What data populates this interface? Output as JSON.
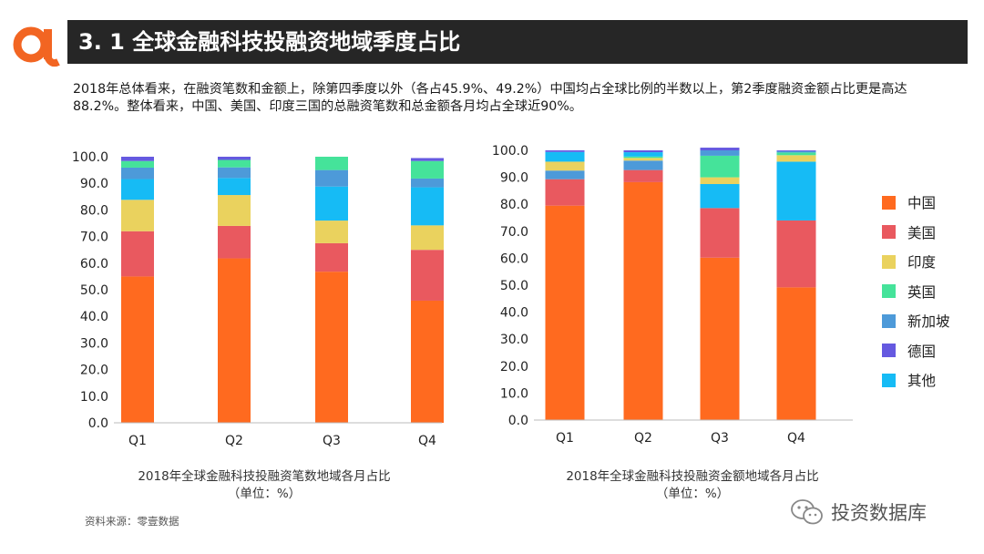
{
  "header": {
    "title": "3. 1  全球金融科技投融资地域季度占比"
  },
  "description": "2018年总体看来，在融资笔数和金额上，除第四季度以外（各占45.9%、49.2%）中国均占全球比例的半数以上，第2季度融资金额占比更是高达88.2%。整体看来，中国、美国、印度三国的总融资笔数和总金额各月均占全球近90%。",
  "colors": {
    "brand": "#f26522",
    "title_bg": "#262626",
    "series": {
      "中国": "#ff6a1f",
      "美国": "#e9595f",
      "印度": "#ead25e",
      "英国": "#45e39a",
      "新加坡": "#4d9ad9",
      "德国": "#6559e0",
      "其他": "#16bbf5"
    }
  },
  "legend": {
    "items": [
      {
        "label": "中国",
        "color_key": "中国"
      },
      {
        "label": "美国",
        "color_key": "美国"
      },
      {
        "label": "印度",
        "color_key": "印度"
      },
      {
        "label": "英国",
        "color_key": "英国"
      },
      {
        "label": "新加坡",
        "color_key": "新加坡"
      },
      {
        "label": "德国",
        "color_key": "德国"
      },
      {
        "label": "其他",
        "color_key": "其他"
      }
    ]
  },
  "chart_data": [
    {
      "type": "bar",
      "stacked": true,
      "title": "2018年全球金融科技投融资笔数地域各月占比",
      "subtitle": "（单位：%）",
      "categories": [
        "Q1",
        "Q2",
        "Q3",
        "Q4"
      ],
      "ylim": [
        0,
        100
      ],
      "yticks": [
        "0.0",
        "10.0",
        "20.0",
        "30.0",
        "40.0",
        "50.0",
        "60.0",
        "70.0",
        "80.0",
        "90.0",
        "100.0"
      ],
      "series": [
        {
          "name": "中国",
          "values": [
            55.0,
            61.8,
            56.8,
            45.9
          ]
        },
        {
          "name": "美国",
          "values": [
            17.0,
            12.2,
            10.7,
            19.1
          ]
        },
        {
          "name": "印度",
          "values": [
            11.8,
            11.6,
            8.5,
            9.2
          ]
        },
        {
          "name": "英国",
          "values": [
            0.0,
            0.0,
            0.0,
            0.0
          ]
        },
        {
          "name": "其他",
          "values": [
            7.8,
            6.4,
            12.8,
            14.3
          ]
        },
        {
          "name": "新加坡",
          "values": [
            4.3,
            4.0,
            6.2,
            3.3
          ]
        },
        {
          "name": "英国",
          "values": [
            2.5,
            2.8,
            5.0,
            6.6
          ]
        },
        {
          "name": "德国",
          "values": [
            1.6,
            1.2,
            0.0,
            1.1
          ]
        }
      ]
    },
    {
      "type": "bar",
      "stacked": true,
      "title": "2018年全球金融科技投融资金额地域各月占比",
      "subtitle": "（单位：%）",
      "categories": [
        "Q1",
        "Q2",
        "Q3",
        "Q4"
      ],
      "ylim": [
        0,
        100
      ],
      "yticks": [
        "0.0",
        "10.0",
        "20.0",
        "30.0",
        "40.0",
        "50.0",
        "60.0",
        "70.0",
        "80.0",
        "90.0",
        "100.0"
      ],
      "series": [
        {
          "name": "中国",
          "values": [
            79.5,
            88.2,
            60.2,
            49.2
          ]
        },
        {
          "name": "美国",
          "values": [
            9.8,
            4.5,
            18.4,
            24.8
          ]
        },
        {
          "name": "印度",
          "values": [
            0.0,
            0.0,
            0.0,
            0.0
          ]
        },
        {
          "name": "新加坡",
          "values": [
            3.2,
            3.5,
            0.0,
            0.0
          ]
        },
        {
          "name": "其他",
          "values": [
            0.0,
            0.0,
            8.9,
            21.8
          ]
        },
        {
          "name": "印度",
          "values": [
            3.3,
            1.0,
            2.5,
            2.4
          ]
        },
        {
          "name": "英国",
          "values": [
            0.0,
            0.5,
            8.0,
            1.0
          ]
        },
        {
          "name": "其他",
          "values": [
            3.6,
            1.6,
            0.0,
            0.0
          ]
        },
        {
          "name": "新加坡",
          "values": [
            0.0,
            0.0,
            2.0,
            0.5
          ]
        },
        {
          "name": "德国",
          "values": [
            0.6,
            0.7,
            1.0,
            0.3
          ]
        }
      ]
    }
  ],
  "source": "资料来源：零壹数据",
  "watermark": {
    "text": "投资数据库",
    "icon": "wechat-icon"
  }
}
